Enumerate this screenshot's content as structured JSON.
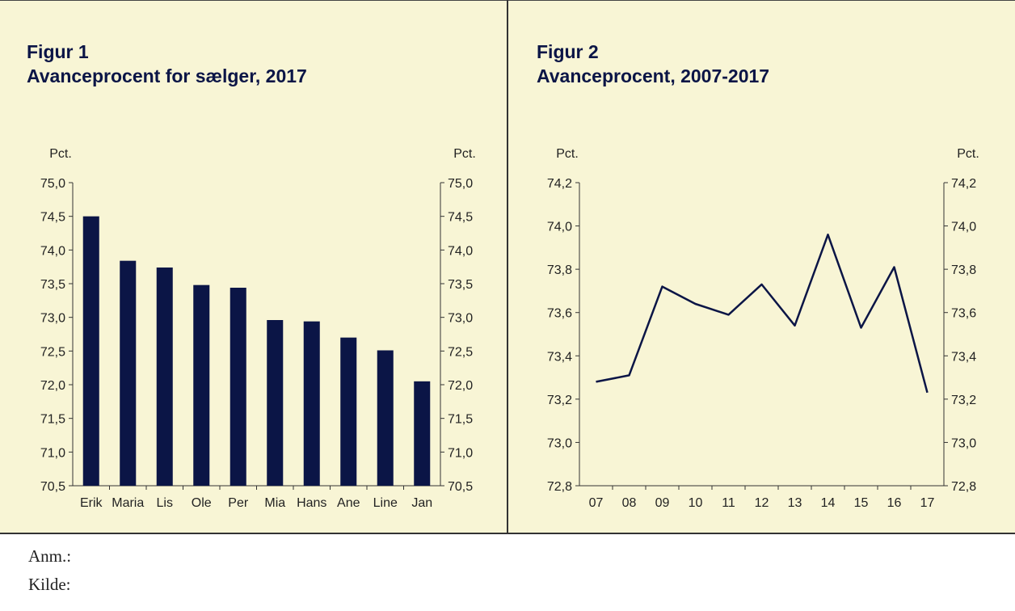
{
  "figures": [
    {
      "label": "Figur 1",
      "title": "Avanceprocent for sælger, 2017"
    },
    {
      "label": "Figur 2",
      "title": "Avanceprocent, 2007-2017"
    }
  ],
  "notes": {
    "anm": "Anm.:",
    "kilde": "Kilde:"
  },
  "colors": {
    "background": "#f8f5d5",
    "series": "#0b1546"
  },
  "chart_data": [
    {
      "type": "bar",
      "title": "Figur 1 Avanceprocent for sælger, 2017",
      "unit_left": "Pct.",
      "unit_right": "Pct.",
      "categories": [
        "Erik",
        "Maria",
        "Lis",
        "Ole",
        "Per",
        "Mia",
        "Hans",
        "Ane",
        "Line",
        "Jan"
      ],
      "values": [
        74.5,
        73.84,
        73.74,
        73.48,
        73.44,
        72.96,
        72.94,
        72.7,
        72.51,
        72.05
      ],
      "ylim": [
        70.5,
        75.0
      ],
      "yticks": [
        "70,5",
        "71,0",
        "71,5",
        "72,0",
        "72,5",
        "73,0",
        "73,5",
        "74,0",
        "74,5",
        "75,0"
      ],
      "grid": false,
      "dual_axis": true
    },
    {
      "type": "line",
      "title": "Figur 2 Avanceprocent, 2007-2017",
      "unit_left": "Pct.",
      "unit_right": "Pct.",
      "categories": [
        "07",
        "08",
        "09",
        "10",
        "11",
        "12",
        "13",
        "14",
        "15",
        "16",
        "17"
      ],
      "values": [
        73.28,
        73.31,
        73.72,
        73.64,
        73.59,
        73.73,
        73.54,
        73.96,
        73.53,
        73.81,
        73.23
      ],
      "ylim": [
        72.8,
        74.2
      ],
      "yticks": [
        "72,8",
        "73,0",
        "73,2",
        "73,4",
        "73,6",
        "73,8",
        "74,0",
        "74,2"
      ],
      "grid": false,
      "dual_axis": true
    }
  ]
}
